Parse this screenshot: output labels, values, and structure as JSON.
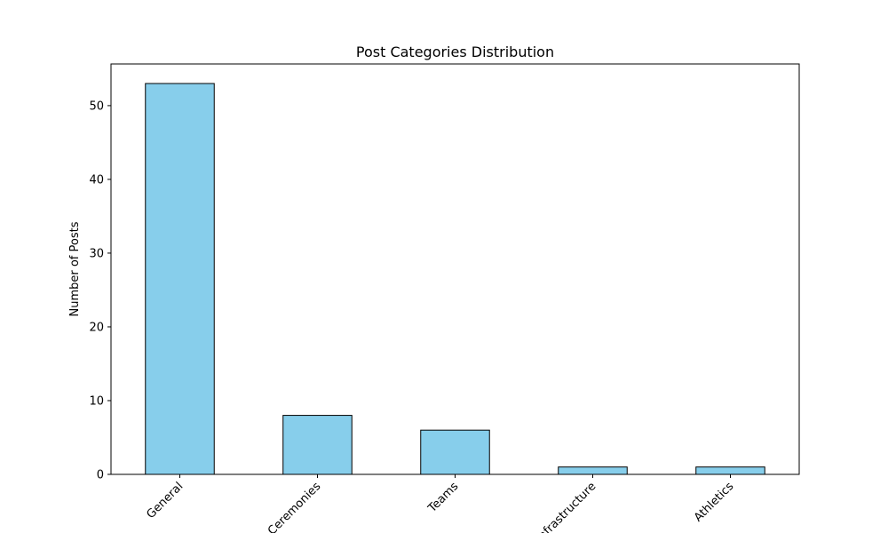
{
  "chart_data": {
    "type": "bar",
    "title": "Post Categories Distribution",
    "xlabel": "",
    "ylabel": "Number of Posts",
    "categories": [
      "General",
      "Ceremonies",
      "Teams",
      "Infrastructure",
      "Athletics"
    ],
    "values": [
      53,
      8,
      6,
      1,
      1
    ],
    "ylim": [
      0,
      55.65
    ],
    "yticks": [
      0,
      10,
      20,
      30,
      40,
      50
    ],
    "grid": false,
    "legend": "none",
    "x_tick_rotation_deg": 45,
    "colors": {
      "bar_fill": "#87ceeb",
      "bar_edge": "#000000",
      "axis": "#000000",
      "background": "#ffffff"
    }
  }
}
